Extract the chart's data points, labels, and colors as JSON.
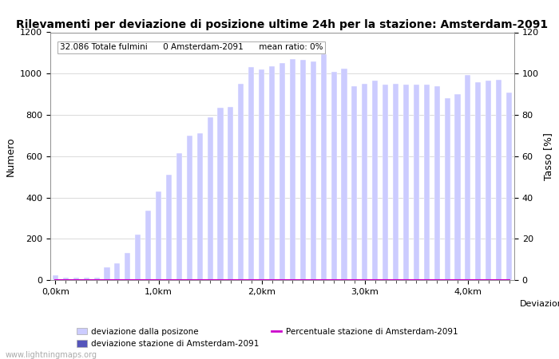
{
  "title": "Rilevamenti per deviazione di posizione ultime 24h per la stazione: Amsterdam-2091",
  "subtitle": "32.086 Totale fulmini      0 Amsterdam-2091      mean ratio: 0%",
  "xlabel": "Deviazioni",
  "ylabel_left": "Numero",
  "ylabel_right": "Tasso [%]",
  "watermark": "www.lightningmaps.org",
  "bar_color_light": "#ccccff",
  "bar_color_dark": "#5555bb",
  "line_color": "#cc00cc",
  "ylim_left": [
    0,
    1200
  ],
  "ylim_right": [
    0,
    120
  ],
  "xtick_labels": [
    "0,0km",
    "1,0km",
    "2,0km",
    "3,0km",
    "4,0km"
  ],
  "xtick_positions": [
    0,
    10,
    20,
    30,
    40
  ],
  "bar_values": [
    25,
    10,
    10,
    10,
    10,
    60,
    80,
    130,
    220,
    335,
    430,
    510,
    615,
    700,
    710,
    790,
    835,
    840,
    950,
    1030,
    1020,
    1035,
    1050,
    1070,
    1065,
    1060,
    1095,
    1010,
    1025,
    940,
    950,
    965,
    945,
    950,
    945,
    945,
    945,
    940,
    880,
    900,
    995,
    960,
    965,
    970,
    910
  ],
  "station_values": [
    0,
    0,
    0,
    0,
    0,
    0,
    0,
    0,
    0,
    0,
    0,
    0,
    0,
    0,
    0,
    0,
    0,
    0,
    0,
    0,
    0,
    0,
    0,
    0,
    0,
    0,
    0,
    0,
    0,
    0,
    0,
    0,
    0,
    0,
    0,
    0,
    0,
    0,
    0,
    0,
    0,
    0,
    0,
    0,
    0
  ],
  "percentage_values": [
    0,
    0,
    0,
    0,
    0,
    0,
    0,
    0,
    0,
    0,
    0,
    0,
    0,
    0,
    0,
    0,
    0,
    0,
    0,
    0,
    0,
    0,
    0,
    0,
    0,
    0,
    0,
    0,
    0,
    0,
    0,
    0,
    0,
    0,
    0,
    0,
    0,
    0,
    0,
    0,
    0,
    0,
    0,
    0,
    0
  ],
  "n_bars": 45,
  "legend_labels": [
    "deviazione dalla posizone",
    "deviazione stazione di Amsterdam-2091",
    "Percentuale stazione di Amsterdam-2091"
  ]
}
